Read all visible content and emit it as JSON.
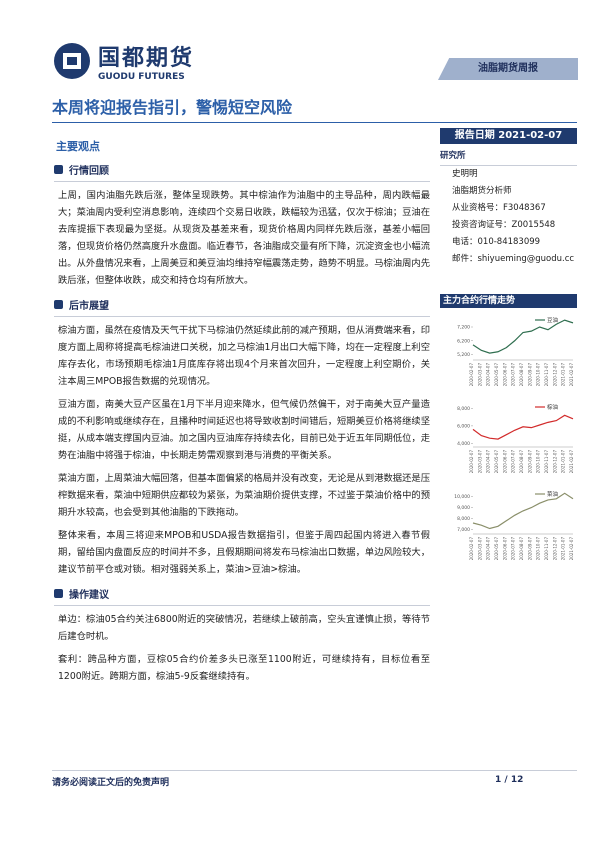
{
  "header": {
    "logo_cn": "国都期货",
    "logo_en": "GUODU FUTURES",
    "tag": "油脂期货周报"
  },
  "title": "本周将迎报告指引，警惕短空风险",
  "report_date": "报告日期 2021-02-07",
  "main": {
    "heading": "主要观点",
    "sections": [
      {
        "heading": "行情回顾",
        "paragraphs": [
          "上周，国内油脂先跌后涨，整体呈现跌势。其中棕油作为油脂中的主导品种，周内跌幅最大；菜油周内受利空消息影响，连续四个交易日收跌，跌幅较为迅猛，仅次于棕油；豆油在去库提振下表现最为坚挺。从现货及基差来看，现货价格周内同样先跌后涨，基差小幅回落，但现货价格仍然高度升水盘面。临近春节，各油脂成交量有所下降，沉淀资金也小幅流出。从外盘情况来看，上周美豆和美豆油均维持窄幅震荡走势，趋势不明显。马棕油周内先跌后涨，但整体收跌，成交和持仓均有所放大。"
        ]
      },
      {
        "heading": "后市展望",
        "paragraphs": [
          "棕油方面，虽然在疫情及天气干扰下马棕油仍然延续此前的减产预期，但从消费端来看，印度方面上周称将提高毛棕油进口关税，加之马棕油1月出口大幅下降，均在一定程度上利空库存去化，市场预期毛棕油1月底库存将出现4个月来首次回升，一定程度上利空期价，关注本周三MPOB报告数据的兑现情况。",
          "豆油方面，南美大豆产区虽在1月下半月迎来降水，但气候仍然偏干，对于南美大豆产量造成的不利影响或继续存在，且播种时间延迟也将导致收割时间错后，短期美豆价格将继续坚挺，从成本端支撑国内豆油。加之国内豆油库存持续去化，目前已处于近五年同期低位，走势在油脂中将强于棕油，中长期走势需观察到港与消费的平衡关系。",
          "菜油方面，上周菜油大幅回落，但基本面偏紧的格局并没有改变，无论是从到港数据还是压榨数据来看，菜油中短期供应都较为紧张，为菜油期价提供支撑，不过鉴于菜油价格中的预期升水较高，也会受到其他油脂的下跌拖动。",
          "整体来看，本周三将迎来MPOB和USDA报告数据指引，但鉴于周四起国内将进入春节假期，留给国内盘面反应的时间并不多，且假期期间将发布马棕油出口数据，单边风险较大，建议节前平仓或对锁。相对强弱关系上，菜油>豆油>棕油。"
        ]
      },
      {
        "heading": "操作建议",
        "paragraphs": [
          "单边：棕油05合约关注6800附近的突破情况，若继续上破前高，空头宜谨慎止损，等待节后建仓时机。",
          "套利：跨品种方面，豆棕05合约价差多头已涨至1100附近，可继续持有，目标位看至1200附近。跨期方面，棕油5-9反套继续持有。"
        ]
      }
    ]
  },
  "sidebar": {
    "heading": "研究所",
    "lines": [
      "史明明",
      "油脂期货分析师",
      "从业资格号：F3048367",
      "投资咨询证号：Z0015548",
      "电话：010-84183099",
      "邮件：shiyueming@guodu.cc"
    ],
    "chart_heading": "主力合约行情走势"
  },
  "footer": {
    "note": "请务必阅读正文后的免责声明",
    "page": "1 / 12"
  },
  "chart_data": [
    {
      "type": "line",
      "categories": [
        "2020-02-07",
        "2020-03-07",
        "2020-04-07",
        "2020-05-07",
        "2020-06-07",
        "2020-07-07",
        "2020-08-07",
        "2020-09-07",
        "2020-10-07",
        "2020-11-07",
        "2020-12-07",
        "2021-01-07",
        "2021-02-07"
      ],
      "series": [
        {
          "name": "豆油",
          "color": "#2f6e4f",
          "values": [
            5900,
            5500,
            5300,
            5400,
            5700,
            6200,
            6800,
            6900,
            7200,
            7000,
            7400,
            7700,
            7500
          ]
        }
      ],
      "ylim": [
        4800,
        8000
      ],
      "yticks": [
        {
          "value": 5200,
          "label": "5,200"
        },
        {
          "value": 6200,
          "label": "6,200"
        },
        {
          "value": 7200,
          "label": "7,200"
        }
      ]
    },
    {
      "type": "line",
      "categories": [
        "2020-02-07",
        "2020-03-07",
        "2020-04-07",
        "2020-05-07",
        "2020-06-07",
        "2020-07-07",
        "2020-08-07",
        "2020-09-07",
        "2020-10-07",
        "2020-11-07",
        "2020-12-07",
        "2021-01-07",
        "2021-02-07"
      ],
      "series": [
        {
          "name": "棕油",
          "color": "#d22b2b",
          "values": [
            5600,
            4900,
            4600,
            4500,
            5000,
            5500,
            5900,
            5800,
            6100,
            6400,
            6600,
            7200,
            6800
          ]
        }
      ],
      "ylim": [
        3600,
        8600
      ],
      "yticks": [
        {
          "value": 4000,
          "label": "4,000"
        },
        {
          "value": 6000,
          "label": "6,000"
        },
        {
          "value": 8000,
          "label": "8,000"
        }
      ]
    },
    {
      "type": "line",
      "categories": [
        "2020-02-07",
        "2020-03-07",
        "2020-04-07",
        "2020-05-07",
        "2020-06-07",
        "2020-07-07",
        "2020-08-07",
        "2020-09-07",
        "2020-10-07",
        "2020-11-07",
        "2020-12-07",
        "2021-01-07",
        "2021-02-07"
      ],
      "series": [
        {
          "name": "菜油",
          "color": "#8a8f6a",
          "values": [
            7600,
            7400,
            7100,
            7300,
            7800,
            8300,
            8700,
            9000,
            9400,
            9700,
            9800,
            10300,
            9800
          ]
        }
      ],
      "ylim": [
        6600,
        10600
      ],
      "yticks": [
        {
          "value": 7000,
          "label": "7,000"
        },
        {
          "value": 8000,
          "label": "8,000"
        },
        {
          "value": 9000,
          "label": "9,000"
        },
        {
          "value": 10000,
          "label": "10,000"
        }
      ]
    }
  ]
}
